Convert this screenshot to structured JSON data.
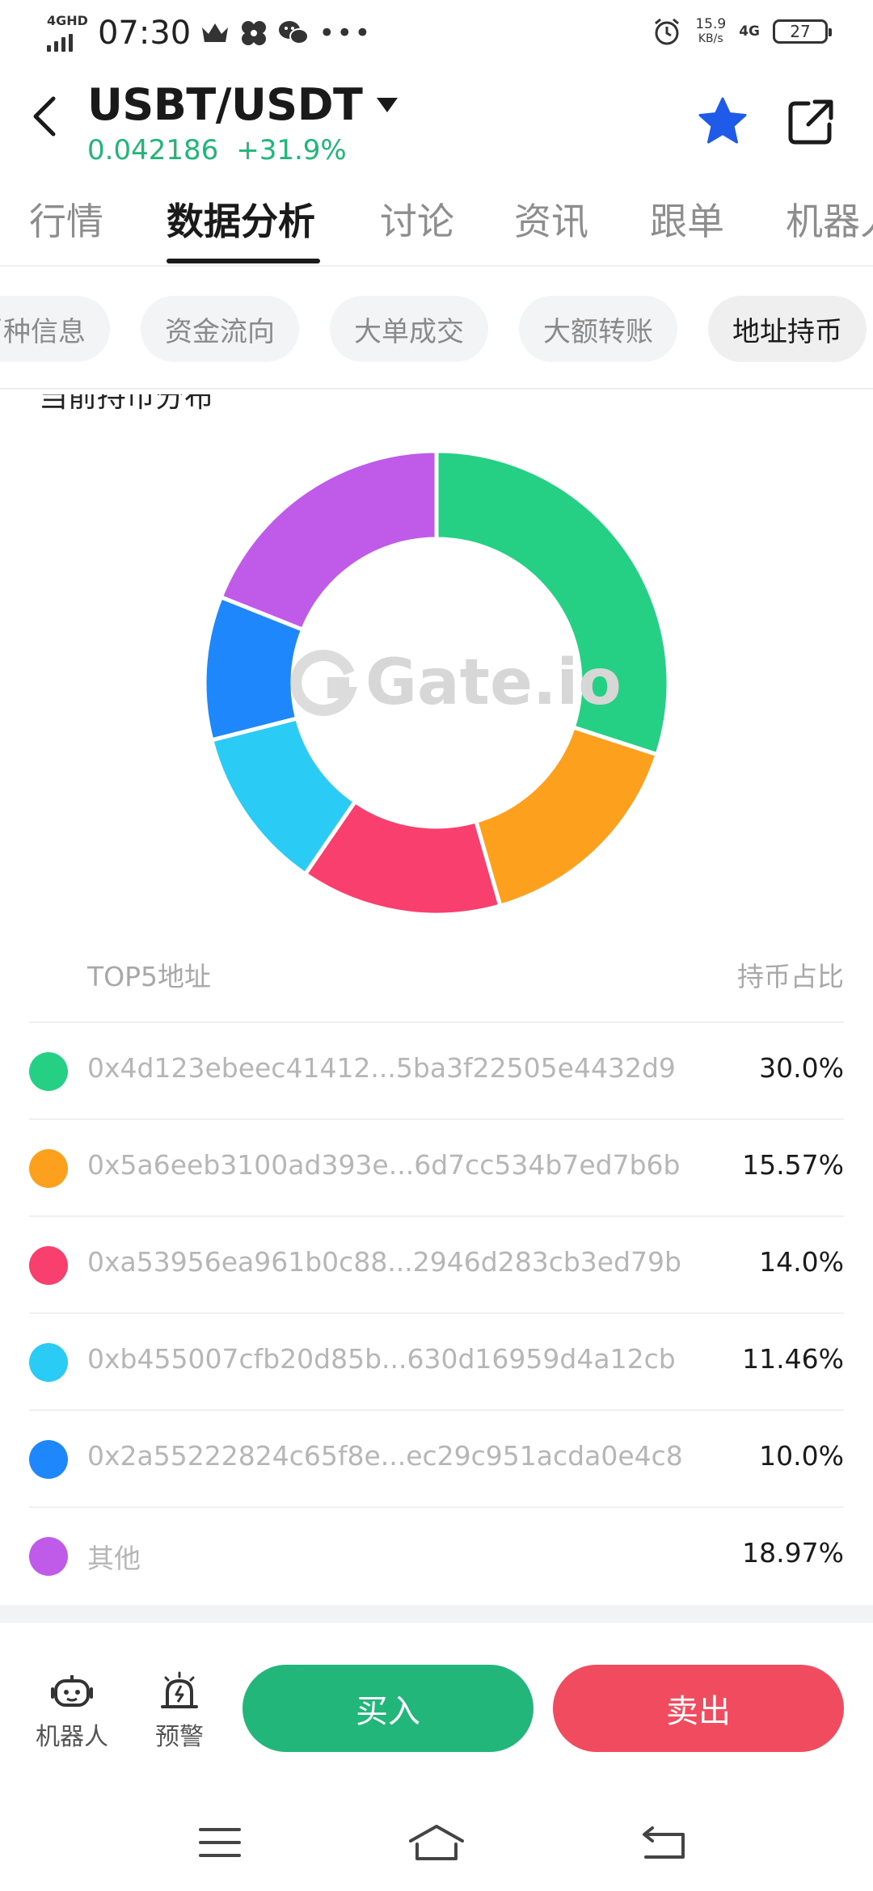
{
  "status_bar": {
    "network": "4GHD",
    "time": "07:30",
    "speed_value": "15.9",
    "speed_unit": "KB/s",
    "mobile": "4G",
    "battery": "27"
  },
  "header": {
    "pair": "USBT/USDT",
    "price": "0.042186",
    "change": "+31.9%",
    "accent": "#21b57a",
    "star_color": "#1f5be8"
  },
  "tabs": [
    {
      "label": "行情"
    },
    {
      "label": "数据分析"
    },
    {
      "label": "讨论"
    },
    {
      "label": "资讯"
    },
    {
      "label": "跟单"
    },
    {
      "label": "机器人"
    }
  ],
  "chips": [
    {
      "label": "币种信息"
    },
    {
      "label": "资金流向"
    },
    {
      "label": "大单成交"
    },
    {
      "label": "大额转账"
    },
    {
      "label": "地址持币"
    }
  ],
  "section": {
    "title": "当前持币分布",
    "watermark": "Gate.io"
  },
  "table": {
    "col_address": "TOP5地址",
    "col_share": "持币占比",
    "rows": [
      {
        "address": "0x4d123ebeec41412...5ba3f22505e4432d9",
        "share": "30.0%",
        "color": "#25d084"
      },
      {
        "address": "0x5a6eeb3100ad393e...6d7cc534b7ed7b6b",
        "share": "15.57%",
        "color": "#fca01e"
      },
      {
        "address": "0xa53956ea961b0c88...2946d283cb3ed79b",
        "share": "14.0%",
        "color": "#f93f6e"
      },
      {
        "address": "0xb455007cfb20d85b...630d16959d4a12cb",
        "share": "11.46%",
        "color": "#2acbf4"
      },
      {
        "address": "0x2a55222824c65f8e...ec29c951acda0e4c8",
        "share": "10.0%",
        "color": "#1f87fc"
      },
      {
        "address": "其他",
        "share": "18.97%",
        "color": "#c05ae8"
      }
    ]
  },
  "chart_data": {
    "type": "pie",
    "categories": [
      "0x4d123ebeec41412...5ba3f22505e4432d9",
      "0x5a6eeb3100ad393e...6d7cc534b7ed7b6b",
      "0xa53956ea961b0c88...2946d283cb3ed79b",
      "0xb455007cfb20d85b...630d16959d4a12cb",
      "0x2a55222824c65f8e...ec29c951acda0e4c8",
      "其他"
    ],
    "values": [
      30.0,
      15.57,
      14.0,
      11.46,
      10.0,
      18.97
    ],
    "colors": [
      "#25d084",
      "#fca01e",
      "#f93f6e",
      "#2acbf4",
      "#1f87fc",
      "#c05ae8"
    ],
    "style": "donut",
    "title": "当前持币分布"
  },
  "bottom_bar": {
    "robot_label": "机器人",
    "alert_label": "预警",
    "buy_label": "买入",
    "sell_label": "卖出"
  }
}
